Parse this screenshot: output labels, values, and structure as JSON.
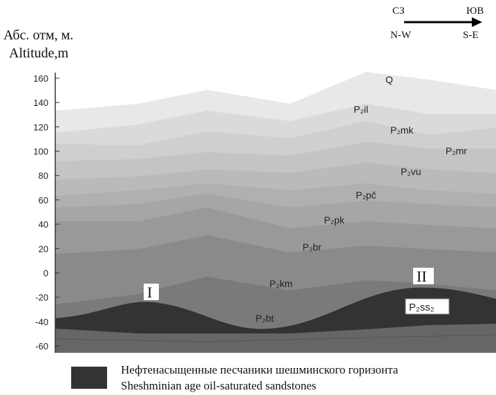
{
  "axis": {
    "label_ru": "Абс. отм, м.",
    "label_en": "Altitude,m",
    "ticks": [
      160,
      140,
      120,
      100,
      80,
      60,
      40,
      20,
      0,
      -20,
      -40,
      -60
    ]
  },
  "direction": {
    "from_ru": "СЗ",
    "to_ru": "ЮВ",
    "from_en": "N-W",
    "to_en": "S-E"
  },
  "layers": [
    "Q",
    "P₂il",
    "P₂mk",
    "P₂mr",
    "P₂vu",
    "P₂pč",
    "P₂pk",
    "P₂br",
    "P₂km",
    "P₂bt",
    "P₂ss₂"
  ],
  "markers": [
    "I",
    "II"
  ],
  "legend": {
    "ru": "Нефтенасыщенные песчаники шешминского горизонта",
    "en": "Sheshminian age oil-saturated sandstones"
  }
}
